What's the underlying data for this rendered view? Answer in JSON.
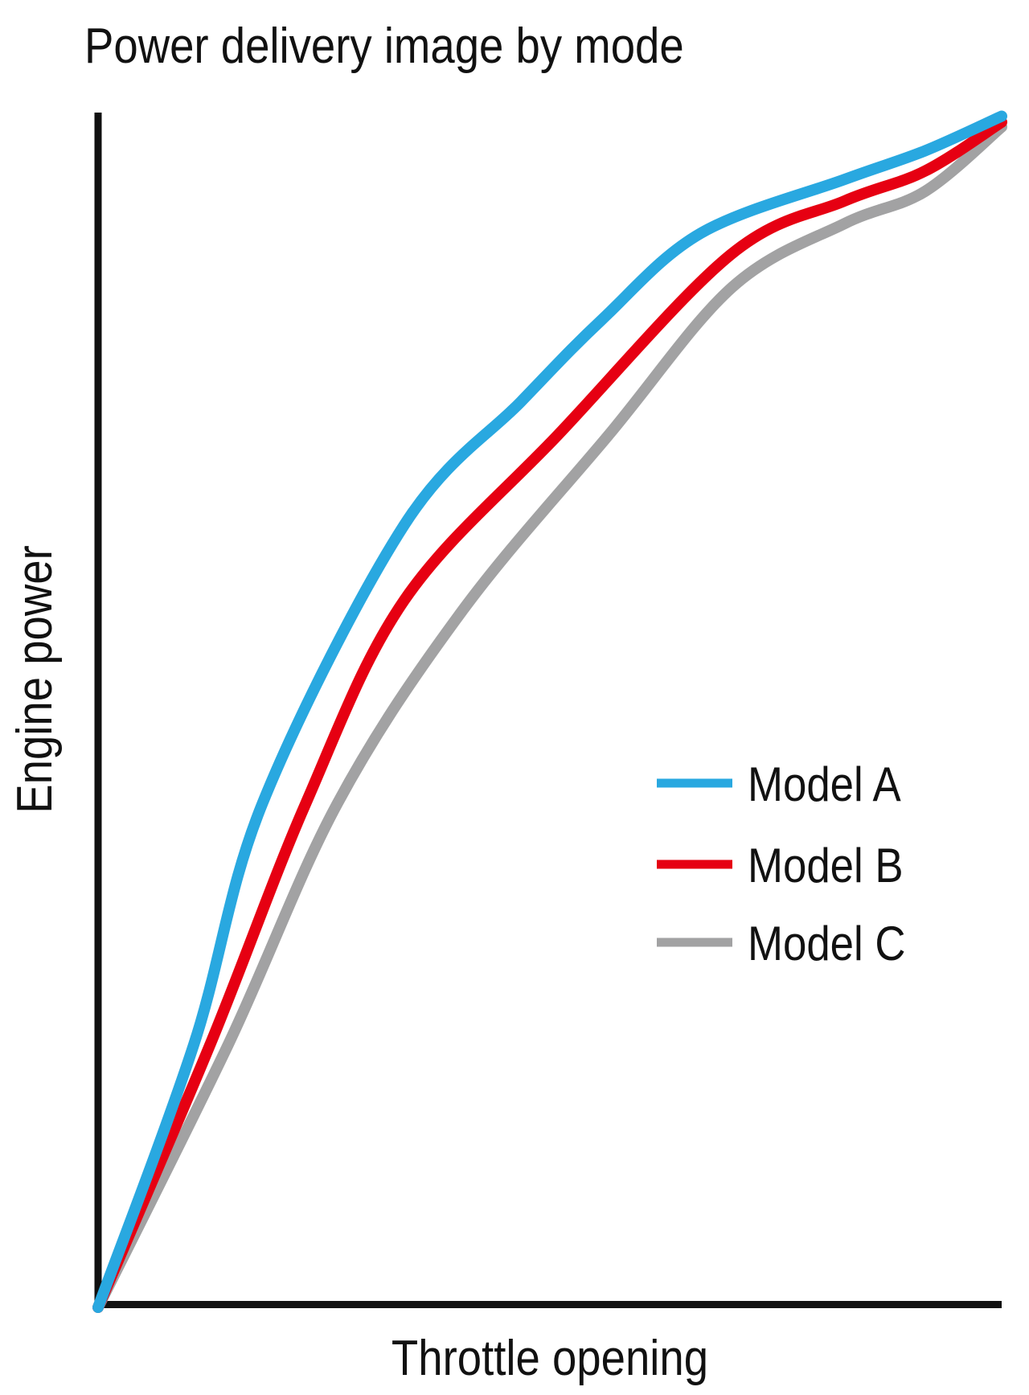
{
  "title": "Power delivery image by mode",
  "axes": {
    "xlabel": "Throttle opening",
    "ylabel": "Engine power"
  },
  "legend": {
    "items": [
      {
        "label": "Model A",
        "color": "#29a8e0"
      },
      {
        "label": "Model B",
        "color": "#e60012"
      },
      {
        "label": "Model C",
        "color": "#a2a2a3"
      }
    ]
  },
  "colors": {
    "background": "#ffffff",
    "axis": "#111111",
    "text": "#111111"
  },
  "chart_data": {
    "type": "line",
    "title": "Power delivery image by mode",
    "xlabel": "Throttle opening",
    "ylabel": "Engine power",
    "x_range": [
      0,
      100
    ],
    "y_range": [
      0,
      100
    ],
    "grid": false,
    "ticks": "none",
    "legend_position": "center-right",
    "note": "Qualitative chart: axes are unlabeled numerically; values are normalized 0-100 read from curve positions",
    "series": [
      {
        "name": "Model A",
        "color": "#29a8e0",
        "x": [
          0,
          10.6,
          18.2,
          33.9,
          46.8,
          55.8,
          66.7,
          82.6,
          91.5,
          100
        ],
        "y": [
          0,
          22.0,
          42.2,
          65.5,
          75.8,
          82.7,
          89.9,
          94.4,
          96.8,
          99.7
        ]
      },
      {
        "name": "Model B",
        "color": "#e60012",
        "x": [
          0,
          12.4,
          23.0,
          33.9,
          51.0,
          70.0,
          82.6,
          91.5,
          100
        ],
        "y": [
          0,
          22.0,
          42.2,
          59.2,
          73.1,
          88.1,
          92.6,
          95.1,
          99.2
        ]
      },
      {
        "name": "Model C",
        "color": "#a2a2a3",
        "x": [
          0,
          14.4,
          26.5,
          40.3,
          56.6,
          70.2,
          82.6,
          91.5,
          100
        ],
        "y": [
          0,
          22.0,
          42.2,
          58.3,
          73.1,
          85.4,
          90.7,
          93.4,
          98.8
        ]
      }
    ]
  }
}
